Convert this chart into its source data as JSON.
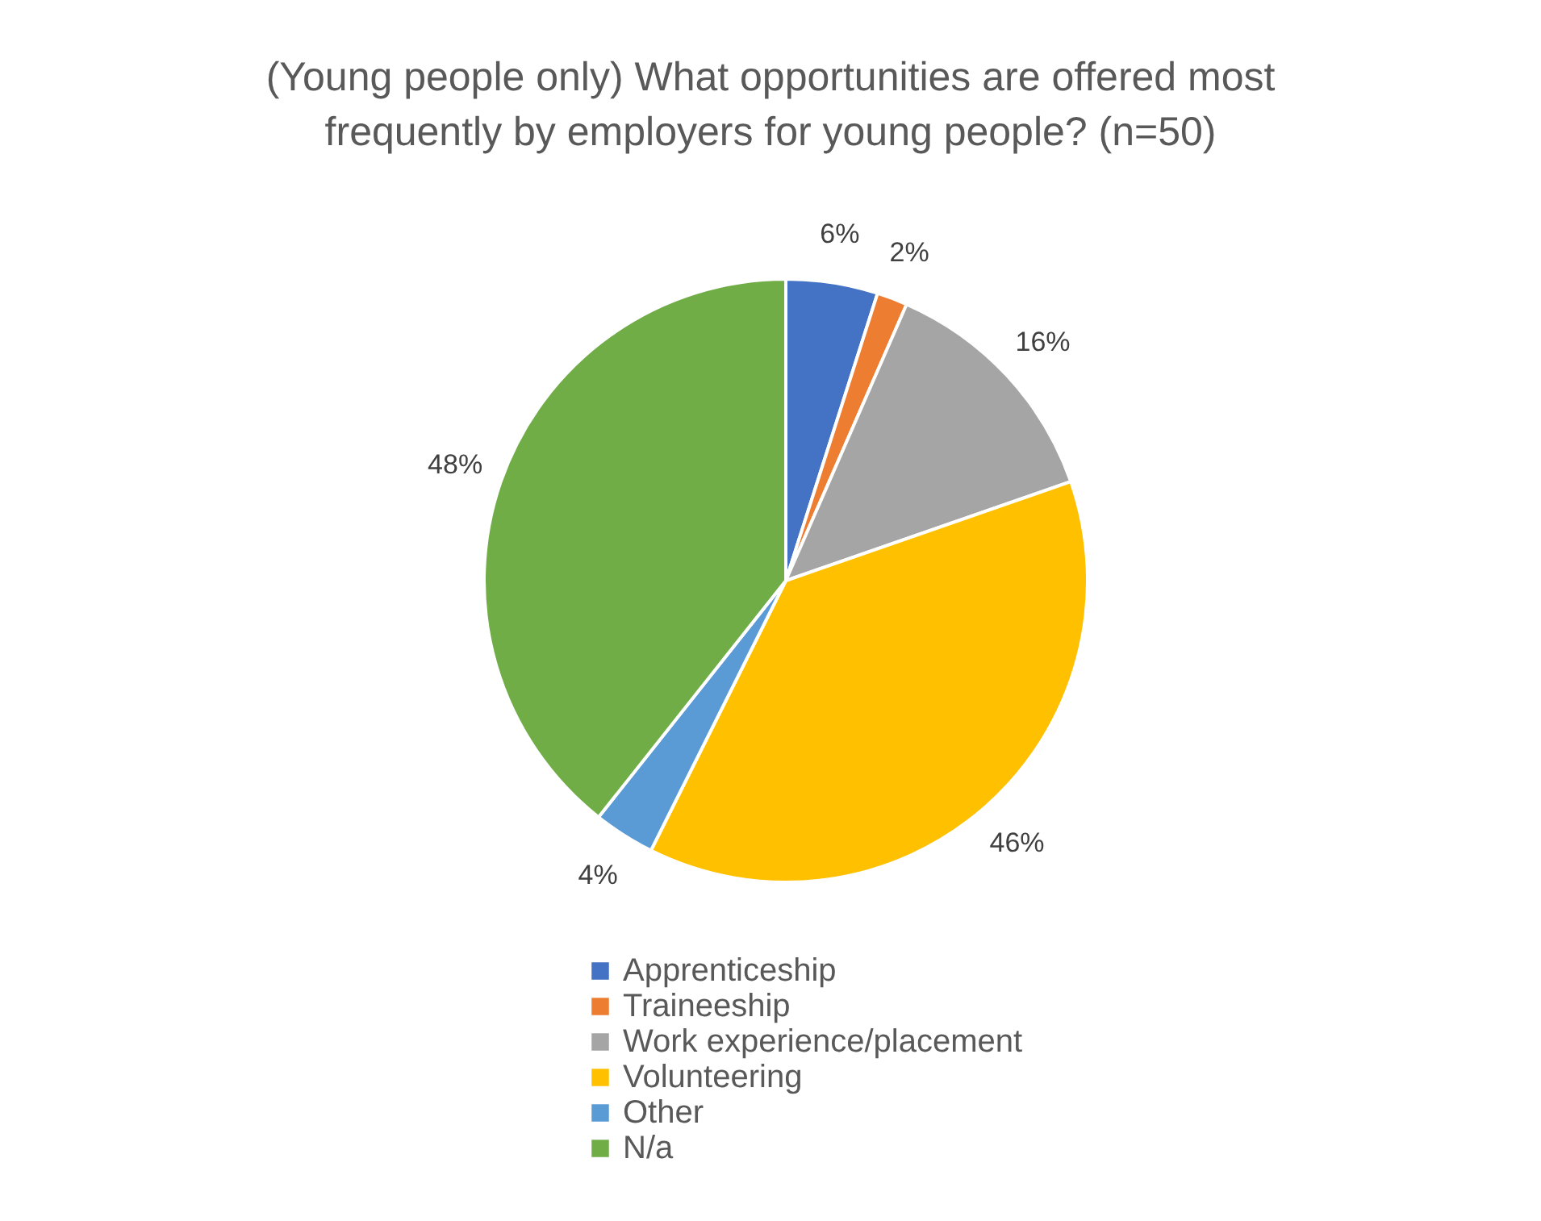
{
  "chart_data": {
    "type": "pie",
    "title": [
      "(Young people only) What opportunities are offered most",
      "frequently by employers for young people? (n=50)"
    ],
    "categories": [
      "Apprenticeship",
      "Traineeship",
      "Work experience/placement",
      "Volunteering",
      "Other",
      "N/a"
    ],
    "values": [
      6,
      2,
      16,
      46,
      4,
      48
    ],
    "value_labels": [
      "6%",
      "2%",
      "16%",
      "46%",
      "4%",
      "48%"
    ],
    "colors": [
      "#4472c4",
      "#ed7d31",
      "#a5a5a5",
      "#ffc000",
      "#5b9bd5",
      "#70ad47"
    ],
    "legend": "bottom"
  }
}
